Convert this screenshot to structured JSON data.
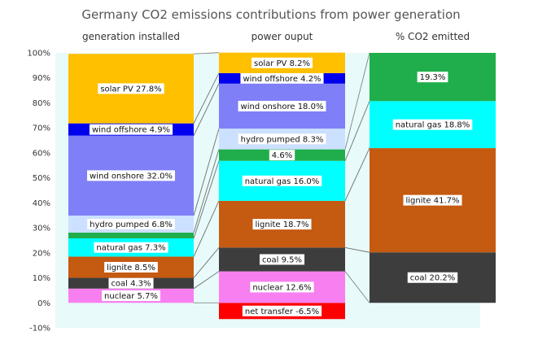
{
  "chart_data": {
    "type": "bar",
    "title": "Germany CO2 emissions contributions from power generation",
    "ylim": [
      -10,
      100
    ],
    "yticks": [
      "-10%",
      "0%",
      "10%",
      "20%",
      "30%",
      "40%",
      "50%",
      "60%",
      "70%",
      "80%",
      "90%",
      "100%"
    ],
    "grid": false,
    "legend": "none",
    "colors": {
      "plot_background": "#e8fafa",
      "label_box": "#ffffff",
      "connector": "#777777"
    },
    "columns": [
      {
        "name": "generation installed",
        "segments": [
          {
            "key": "nuclear",
            "label": "nuclear 5.7%",
            "value": 5.7,
            "color": "#f77ff0"
          },
          {
            "key": "coal",
            "label": "coal 4.3%",
            "value": 4.3,
            "color": "#3d3d3d"
          },
          {
            "key": "lignite",
            "label": "lignite 8.5%",
            "value": 8.5,
            "color": "#c55a11"
          },
          {
            "key": "natural-gas",
            "label": "natural gas 7.3%",
            "value": 7.3,
            "color": "#00ffff"
          },
          {
            "key": "biomass",
            "label": "",
            "value": 2.3,
            "color": "#1fae4b"
          },
          {
            "key": "hydro-pumped",
            "label": "hydro pumped 6.8%",
            "value": 6.8,
            "color": "#cce0ff"
          },
          {
            "key": "wind-onshore",
            "label": "wind onshore 32.0%",
            "value": 32.0,
            "color": "#7f7ff7"
          },
          {
            "key": "wind-offshore",
            "label": "wind offshore 4.9%",
            "value": 4.9,
            "color": "#0000ee"
          },
          {
            "key": "solar-pv",
            "label": "solar PV 27.8%",
            "value": 27.8,
            "color": "#ffc000"
          }
        ]
      },
      {
        "name": "power ouput",
        "segments": [
          {
            "key": "net-transfer",
            "label": "net transfer -6.5%",
            "value": -6.5,
            "color": "#ff0000"
          },
          {
            "key": "nuclear",
            "label": "nuclear 12.6%",
            "value": 12.6,
            "color": "#f77ff0"
          },
          {
            "key": "coal",
            "label": "coal 9.5%",
            "value": 9.5,
            "color": "#3d3d3d"
          },
          {
            "key": "lignite",
            "label": "lignite 18.7%",
            "value": 18.7,
            "color": "#c55a11"
          },
          {
            "key": "natural-gas",
            "label": "natural gas 16.0%",
            "value": 16.0,
            "color": "#00ffff"
          },
          {
            "key": "biomass",
            "label": "4.6%",
            "value": 4.6,
            "color": "#1fae4b"
          },
          {
            "key": "hydro-pumped",
            "label": "hydro pumped 8.3%",
            "value": 8.3,
            "color": "#cce0ff"
          },
          {
            "key": "wind-onshore",
            "label": "wind onshore 18.0%",
            "value": 18.0,
            "color": "#7f7ff7"
          },
          {
            "key": "wind-offshore",
            "label": "wind offshore 4.2%",
            "value": 4.2,
            "color": "#0000ee"
          },
          {
            "key": "solar-pv",
            "label": "solar PV 8.2%",
            "value": 8.2,
            "color": "#ffc000"
          }
        ]
      },
      {
        "name": "% CO2 emitted",
        "segments": [
          {
            "key": "coal",
            "label": "coal 20.2%",
            "value": 20.2,
            "color": "#3d3d3d"
          },
          {
            "key": "lignite",
            "label": "lignite 41.7%",
            "value": 41.7,
            "color": "#c55a11"
          },
          {
            "key": "natural-gas",
            "label": "natural gas 18.8%",
            "value": 18.8,
            "color": "#00ffff"
          },
          {
            "key": "biomass",
            "label": "19.3%",
            "value": 19.3,
            "color": "#1fae4b"
          }
        ]
      }
    ]
  }
}
